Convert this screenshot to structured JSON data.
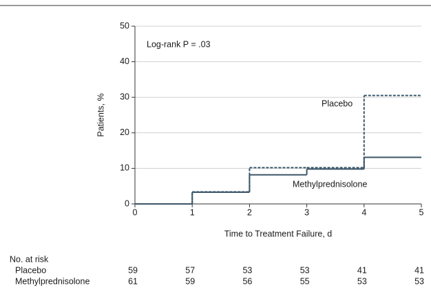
{
  "chart_data": {
    "type": "step",
    "x_label": "Time to Treatment Failure, d",
    "y_label": "Patients, %",
    "annotation": "Log-rank P = .03",
    "x": [
      0,
      1,
      2,
      3,
      4
    ],
    "series": [
      {
        "name": "Placebo",
        "color": "#3b5668",
        "dash": true,
        "values": [
          0,
          3.4,
          10.2,
          10.2,
          30.5
        ]
      },
      {
        "name": "Methylprednisolone",
        "color": "#3b5668",
        "dash": false,
        "values": [
          0,
          3.3,
          8.2,
          9.8,
          13.1
        ]
      }
    ],
    "xlim": [
      0,
      5
    ],
    "xticks": [
      0,
      1,
      2,
      3,
      4,
      5
    ],
    "ylim": [
      0,
      50
    ],
    "yticks": [
      0,
      10,
      20,
      30,
      40,
      50
    ],
    "grid": true,
    "at_risk": {
      "title": "No. at risk",
      "rows": [
        {
          "label": "Placebo",
          "values": [
            "59",
            "57",
            "53",
            "53",
            "41",
            "41"
          ]
        },
        {
          "label": "Methylprednisolone",
          "values": [
            "61",
            "59",
            "56",
            "55",
            "53",
            "53"
          ]
        }
      ]
    }
  }
}
